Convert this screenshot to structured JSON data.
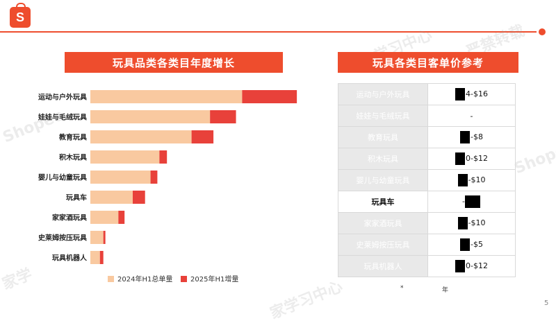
{
  "logo": {
    "letter": "S"
  },
  "chart_header": "玩具品类各类目年度增长",
  "table_header": "玩具各类目客单价参考",
  "chart_data": {
    "type": "bar",
    "orientation": "horizontal",
    "stacked": true,
    "categories": [
      "运动与户外玩具",
      "娃娃与毛绒玩具",
      "教育玩具",
      "积木玩具",
      "婴儿与幼童玩具",
      "玩具车",
      "家家酒玩具",
      "史莱姆按压玩具",
      "玩具机器人"
    ],
    "series": [
      {
        "name": "2024年H1总单量",
        "color": "#f9c9a0",
        "values": [
          222,
          175,
          148,
          101,
          88,
          62,
          41,
          19,
          14
        ]
      },
      {
        "name": "2025年H1增量",
        "color": "#e8413a",
        "values": [
          80,
          38,
          32,
          11,
          10,
          18,
          9,
          3,
          5
        ]
      }
    ],
    "xlim": [
      0,
      310
    ],
    "legend_position": "bottom",
    "grid": false
  },
  "price_table": {
    "rows": [
      {
        "category": "运动与户外玩具",
        "price": "4-$16",
        "redact": "short",
        "highlight": false
      },
      {
        "category": "娃娃与毛绒玩具",
        "price": "-",
        "redact": "none",
        "highlight": false
      },
      {
        "category": "教育玩具",
        "price": "-$8",
        "redact": "short",
        "highlight": false
      },
      {
        "category": "积木玩具",
        "price": "0-$12",
        "redact": "short",
        "highlight": false
      },
      {
        "category": "婴儿与幼童玩具",
        "price": "-$10",
        "redact": "short",
        "highlight": false
      },
      {
        "category": "玩具车",
        "price": "-",
        "redact": "wide",
        "highlight": true
      },
      {
        "category": "家家酒玩具",
        "price": "-$10",
        "redact": "short",
        "highlight": false
      },
      {
        "category": "史莱姆按压玩具",
        "price": "-$5",
        "redact": "short",
        "highlight": false
      },
      {
        "category": "玩具机器人",
        "price": "0-$12",
        "redact": "short",
        "highlight": false
      }
    ]
  },
  "footnote": {
    "mark": "*",
    "year": "年"
  },
  "page_number": "5",
  "watermarks": [
    "Shopee",
    "Shopee",
    "严禁转载",
    "学习中心",
    "家学",
    "家学习中心"
  ],
  "colors": {
    "brand": "#ee4d2d"
  }
}
